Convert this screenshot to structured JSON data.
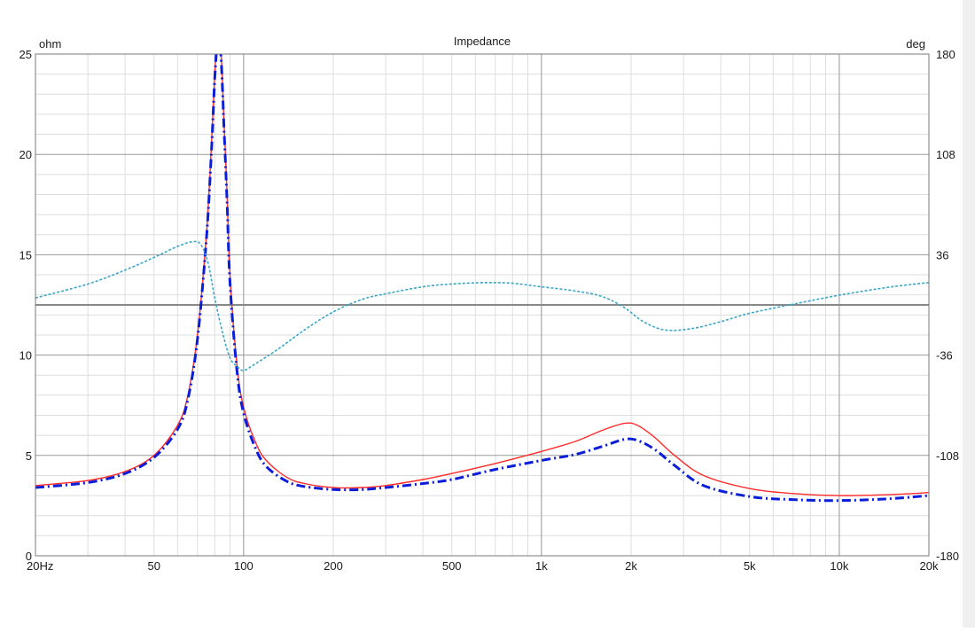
{
  "chart_data": {
    "type": "line",
    "title": "Impedance",
    "y_left_unit": "ohm",
    "y_right_unit": "deg",
    "x_scale": "log",
    "xlim": [
      20,
      20000
    ],
    "ylim_left": [
      0,
      25
    ],
    "ylim_right": [
      -180,
      180
    ],
    "x_ticks": [
      {
        "value": 20,
        "label": "20Hz"
      },
      {
        "value": 50,
        "label": "50"
      },
      {
        "value": 100,
        "label": "100"
      },
      {
        "value": 200,
        "label": "200"
      },
      {
        "value": 500,
        "label": "500"
      },
      {
        "value": 1000,
        "label": "1k"
      },
      {
        "value": 2000,
        "label": "2k"
      },
      {
        "value": 5000,
        "label": "5k"
      },
      {
        "value": 10000,
        "label": "10k"
      },
      {
        "value": 20000,
        "label": "20k"
      }
    ],
    "y_left_ticks": [
      {
        "value": 0,
        "label": "0"
      },
      {
        "value": 5,
        "label": "5"
      },
      {
        "value": 10,
        "label": "10"
      },
      {
        "value": 15,
        "label": "15"
      },
      {
        "value": 20,
        "label": "20"
      },
      {
        "value": 25,
        "label": "25"
      }
    ],
    "y_right_ticks": [
      {
        "value": -180,
        "label": "-180"
      },
      {
        "value": -108,
        "label": "-108"
      },
      {
        "value": -36,
        "label": "-36"
      },
      {
        "value": 36,
        "label": "36"
      },
      {
        "value": 108,
        "label": "108"
      },
      {
        "value": 180,
        "label": "180"
      }
    ],
    "grid": true,
    "series": [
      {
        "axis": "left",
        "color": "#ff2a2a",
        "style": "solid",
        "points": [
          [
            20,
            3.5
          ],
          [
            30,
            3.75
          ],
          [
            40,
            4.2
          ],
          [
            50,
            5.0
          ],
          [
            60,
            6.5
          ],
          [
            65,
            8.0
          ],
          [
            70,
            11.0
          ],
          [
            75,
            16.0
          ],
          [
            78,
            20.5
          ],
          [
            80,
            24.0
          ],
          [
            82,
            26.0
          ],
          [
            84,
            25.0
          ],
          [
            86,
            21.5
          ],
          [
            88,
            18.0
          ],
          [
            90,
            14.0
          ],
          [
            95,
            9.5
          ],
          [
            100,
            7.4
          ],
          [
            110,
            5.6
          ],
          [
            120,
            4.7
          ],
          [
            140,
            3.9
          ],
          [
            160,
            3.6
          ],
          [
            200,
            3.4
          ],
          [
            250,
            3.4
          ],
          [
            300,
            3.5
          ],
          [
            400,
            3.8
          ],
          [
            500,
            4.1
          ],
          [
            700,
            4.6
          ],
          [
            1000,
            5.2
          ],
          [
            1300,
            5.7
          ],
          [
            1600,
            6.25
          ],
          [
            1900,
            6.6
          ],
          [
            2100,
            6.5
          ],
          [
            2400,
            5.9
          ],
          [
            2800,
            5.0
          ],
          [
            3500,
            4.0
          ],
          [
            5000,
            3.35
          ],
          [
            7000,
            3.1
          ],
          [
            10000,
            3.0
          ],
          [
            15000,
            3.05
          ],
          [
            20000,
            3.15
          ]
        ]
      },
      {
        "axis": "left",
        "color": "#0a1ed8",
        "style": "dashdot",
        "points": [
          [
            20,
            3.4
          ],
          [
            30,
            3.65
          ],
          [
            40,
            4.1
          ],
          [
            50,
            4.9
          ],
          [
            60,
            6.3
          ],
          [
            65,
            7.8
          ],
          [
            70,
            10.8
          ],
          [
            75,
            15.8
          ],
          [
            78,
            20.2
          ],
          [
            80,
            23.8
          ],
          [
            82,
            25.8
          ],
          [
            84,
            24.8
          ],
          [
            86,
            21.2
          ],
          [
            88,
            17.6
          ],
          [
            90,
            13.6
          ],
          [
            95,
            9.2
          ],
          [
            100,
            7.1
          ],
          [
            110,
            5.3
          ],
          [
            120,
            4.4
          ],
          [
            140,
            3.7
          ],
          [
            160,
            3.45
          ],
          [
            200,
            3.3
          ],
          [
            250,
            3.3
          ],
          [
            300,
            3.4
          ],
          [
            400,
            3.6
          ],
          [
            500,
            3.8
          ],
          [
            700,
            4.3
          ],
          [
            1000,
            4.75
          ],
          [
            1300,
            5.05
          ],
          [
            1600,
            5.45
          ],
          [
            1900,
            5.8
          ],
          [
            2100,
            5.75
          ],
          [
            2400,
            5.3
          ],
          [
            2800,
            4.5
          ],
          [
            3500,
            3.5
          ],
          [
            5000,
            2.95
          ],
          [
            7000,
            2.8
          ],
          [
            10000,
            2.75
          ],
          [
            15000,
            2.85
          ],
          [
            20000,
            3.0
          ]
        ]
      },
      {
        "axis": "right",
        "color": "#3aa6c6",
        "style": "dotted",
        "points": [
          [
            20,
            5.0
          ],
          [
            30,
            15.0
          ],
          [
            40,
            25.0
          ],
          [
            50,
            34.0
          ],
          [
            60,
            42.0
          ],
          [
            68,
            45.5
          ],
          [
            72,
            43.0
          ],
          [
            76,
            30.0
          ],
          [
            80,
            5.0
          ],
          [
            85,
            -20.0
          ],
          [
            90,
            -38.0
          ],
          [
            95,
            -44.0
          ],
          [
            100,
            -47.0
          ],
          [
            110,
            -42.0
          ],
          [
            130,
            -32.0
          ],
          [
            160,
            -18.0
          ],
          [
            200,
            -5.0
          ],
          [
            250,
            4.0
          ],
          [
            300,
            8.0
          ],
          [
            400,
            13.0
          ],
          [
            500,
            15.0
          ],
          [
            650,
            16.0
          ],
          [
            800,
            15.5
          ],
          [
            1000,
            13.0
          ],
          [
            1300,
            10.0
          ],
          [
            1600,
            6.0
          ],
          [
            1900,
            -2.0
          ],
          [
            2200,
            -12.0
          ],
          [
            2600,
            -18.0
          ],
          [
            3200,
            -17.0
          ],
          [
            4000,
            -12.0
          ],
          [
            5000,
            -6.0
          ],
          [
            7000,
            0.5
          ],
          [
            10000,
            7.0
          ],
          [
            15000,
            13.0
          ],
          [
            20000,
            16.0
          ]
        ]
      }
    ]
  }
}
